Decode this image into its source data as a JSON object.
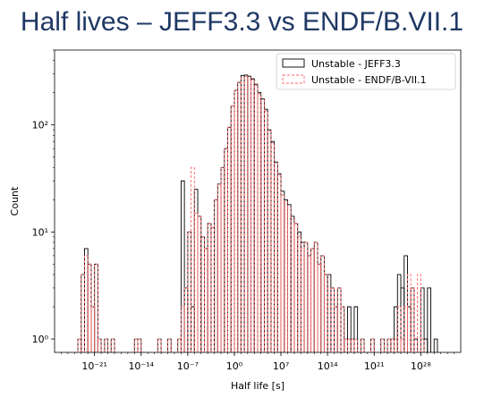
{
  "title": "Half lives – JEFF3.3 vs ENDF/B.VII.1",
  "chart_data": {
    "type": "bar",
    "histogram": true,
    "xscale": "log",
    "yscale": "log",
    "xlabel": "Half life [s]",
    "ylabel": "Count",
    "xlim_exp10": [
      -27,
      34
    ],
    "ylim": [
      0.75,
      500
    ],
    "xticks": [
      {
        "exp": -21,
        "label": "10⁻²¹"
      },
      {
        "exp": -14,
        "label": "10⁻¹⁴"
      },
      {
        "exp": -7,
        "label": "10⁻⁷"
      },
      {
        "exp": 0,
        "label": "10⁰"
      },
      {
        "exp": 7,
        "label": "10⁷"
      },
      {
        "exp": 14,
        "label": "10¹⁴"
      },
      {
        "exp": 21,
        "label": "10²¹"
      },
      {
        "exp": 28,
        "label": "10²⁸"
      }
    ],
    "yticks": [
      {
        "value": 1,
        "label": "10⁰"
      },
      {
        "value": 10,
        "label": "10¹"
      },
      {
        "value": 100,
        "label": "10²"
      }
    ],
    "legend": "top-right",
    "series": [
      {
        "name": "Unstable - JEFF3.3",
        "color": "#000000",
        "style": "solid",
        "bins": [
          [
            -23.5,
            -23.0,
            1
          ],
          [
            -23.0,
            -22.5,
            4
          ],
          [
            -22.5,
            -22.0,
            7
          ],
          [
            -22.0,
            -21.5,
            5
          ],
          [
            -21.5,
            -21.0,
            2
          ],
          [
            -21.0,
            -20.5,
            5
          ],
          [
            -20.5,
            -20.0,
            1
          ],
          [
            -19.5,
            -19.0,
            1
          ],
          [
            -18.5,
            -18.0,
            1
          ],
          [
            -15.0,
            -14.5,
            1
          ],
          [
            -14.5,
            -14.0,
            1
          ],
          [
            -11.5,
            -11.0,
            1
          ],
          [
            -10.0,
            -9.5,
            1
          ],
          [
            -8.5,
            -8.0,
            1
          ],
          [
            -8.0,
            -7.5,
            30
          ],
          [
            -7.5,
            -7.0,
            3
          ],
          [
            -7.0,
            -6.5,
            10
          ],
          [
            -6.5,
            -6.0,
            2
          ],
          [
            -6.0,
            -5.5,
            25
          ],
          [
            -5.5,
            -5.0,
            14
          ],
          [
            -5.0,
            -4.5,
            9
          ],
          [
            -4.5,
            -4.0,
            7
          ],
          [
            -4.0,
            -3.5,
            12
          ],
          [
            -3.5,
            -3.0,
            11
          ],
          [
            -3.0,
            -2.5,
            20
          ],
          [
            -2.5,
            -2.0,
            28
          ],
          [
            -2.0,
            -1.5,
            40
          ],
          [
            -1.5,
            -1.0,
            60
          ],
          [
            -1.0,
            -0.5,
            95
          ],
          [
            -0.5,
            0.0,
            150
          ],
          [
            0.0,
            0.5,
            210
          ],
          [
            0.5,
            1.0,
            250
          ],
          [
            1.0,
            1.5,
            290
          ],
          [
            1.5,
            2.0,
            292
          ],
          [
            2.0,
            2.5,
            285
          ],
          [
            2.5,
            3.0,
            270
          ],
          [
            3.0,
            3.5,
            240
          ],
          [
            3.5,
            4.0,
            200
          ],
          [
            4.0,
            4.5,
            175
          ],
          [
            4.5,
            5.0,
            140
          ],
          [
            5.0,
            5.5,
            90
          ],
          [
            5.5,
            6.0,
            70
          ],
          [
            6.0,
            6.5,
            45
          ],
          [
            6.5,
            7.0,
            35
          ],
          [
            7.0,
            7.5,
            24
          ],
          [
            7.5,
            8.0,
            20
          ],
          [
            8.0,
            8.5,
            18
          ],
          [
            8.5,
            9.0,
            14
          ],
          [
            9.0,
            9.5,
            12
          ],
          [
            9.5,
            10.0,
            10
          ],
          [
            10.0,
            10.5,
            8
          ],
          [
            10.5,
            11.0,
            8
          ],
          [
            11.0,
            11.5,
            6
          ],
          [
            11.5,
            12.0,
            7
          ],
          [
            12.0,
            12.5,
            8
          ],
          [
            12.5,
            13.0,
            5
          ],
          [
            13.0,
            13.5,
            6
          ],
          [
            13.5,
            14.0,
            4
          ],
          [
            14.0,
            14.5,
            4
          ],
          [
            14.5,
            15.0,
            3
          ],
          [
            15.0,
            15.5,
            2
          ],
          [
            15.5,
            16.0,
            3
          ],
          [
            16.0,
            16.5,
            2
          ],
          [
            16.5,
            17.0,
            1
          ],
          [
            17.0,
            17.5,
            2
          ],
          [
            17.5,
            18.0,
            1
          ],
          [
            18.0,
            18.5,
            2
          ],
          [
            19.0,
            19.5,
            1
          ],
          [
            20.5,
            21.0,
            1
          ],
          [
            22.0,
            22.5,
            1
          ],
          [
            23.0,
            23.5,
            1
          ],
          [
            23.5,
            24.0,
            1
          ],
          [
            24.0,
            24.5,
            2
          ],
          [
            24.5,
            25.0,
            4
          ],
          [
            25.0,
            25.5,
            3
          ],
          [
            25.5,
            26.0,
            6
          ],
          [
            26.0,
            26.5,
            2
          ],
          [
            26.5,
            27.0,
            3
          ],
          [
            27.0,
            27.5,
            1
          ],
          [
            28.0,
            28.5,
            3
          ],
          [
            28.5,
            29.0,
            1
          ],
          [
            29.0,
            29.5,
            3
          ],
          [
            30.0,
            30.5,
            1
          ]
        ]
      },
      {
        "name": "Unstable - ENDF/B-VII.1",
        "color": "#ff6666",
        "style": "dashed",
        "bins": [
          [
            -23.5,
            -23.0,
            1
          ],
          [
            -23.0,
            -22.5,
            4
          ],
          [
            -22.5,
            -22.0,
            6
          ],
          [
            -22.0,
            -21.5,
            5
          ],
          [
            -21.5,
            -21.0,
            2
          ],
          [
            -21.0,
            -20.5,
            5
          ],
          [
            -20.5,
            -20.0,
            1
          ],
          [
            -19.5,
            -19.0,
            1
          ],
          [
            -18.5,
            -18.0,
            1
          ],
          [
            -15.0,
            -14.5,
            1
          ],
          [
            -14.5,
            -14.0,
            1
          ],
          [
            -11.5,
            -11.0,
            1
          ],
          [
            -10.0,
            -9.5,
            1
          ],
          [
            -8.5,
            -8.0,
            1
          ],
          [
            -8.0,
            -7.5,
            2
          ],
          [
            -7.5,
            -7.0,
            3
          ],
          [
            -7.0,
            -6.5,
            10
          ],
          [
            -6.5,
            -6.0,
            40
          ],
          [
            -6.0,
            -5.5,
            15
          ],
          [
            -5.5,
            -5.0,
            14
          ],
          [
            -5.0,
            -4.5,
            9
          ],
          [
            -4.5,
            -4.0,
            7
          ],
          [
            -4.0,
            -3.5,
            12
          ],
          [
            -3.5,
            -3.0,
            11
          ],
          [
            -3.0,
            -2.5,
            20
          ],
          [
            -2.5,
            -2.0,
            28
          ],
          [
            -2.0,
            -1.5,
            40
          ],
          [
            -1.5,
            -1.0,
            60
          ],
          [
            -1.0,
            -0.5,
            95
          ],
          [
            -0.5,
            0.0,
            150
          ],
          [
            0.0,
            0.5,
            210
          ],
          [
            0.5,
            1.0,
            250
          ],
          [
            1.0,
            1.5,
            275
          ],
          [
            1.5,
            2.0,
            285
          ],
          [
            2.0,
            2.5,
            280
          ],
          [
            2.5,
            3.0,
            265
          ],
          [
            3.0,
            3.5,
            235
          ],
          [
            3.5,
            4.0,
            195
          ],
          [
            4.0,
            4.5,
            170
          ],
          [
            4.5,
            5.0,
            135
          ],
          [
            5.0,
            5.5,
            88
          ],
          [
            5.5,
            6.0,
            68
          ],
          [
            6.0,
            6.5,
            44
          ],
          [
            6.5,
            7.0,
            34
          ],
          [
            7.0,
            7.5,
            22
          ],
          [
            7.5,
            8.0,
            19
          ],
          [
            8.0,
            8.5,
            17
          ],
          [
            8.5,
            9.0,
            13
          ],
          [
            9.0,
            9.5,
            12
          ],
          [
            9.5,
            10.0,
            9
          ],
          [
            10.0,
            10.5,
            7
          ],
          [
            10.5,
            11.0,
            8
          ],
          [
            11.0,
            11.5,
            6
          ],
          [
            11.5,
            12.0,
            7
          ],
          [
            12.0,
            12.5,
            8
          ],
          [
            12.5,
            13.0,
            5
          ],
          [
            13.0,
            13.5,
            6
          ],
          [
            13.5,
            14.0,
            4
          ],
          [
            14.0,
            14.5,
            3
          ],
          [
            14.5,
            15.0,
            3
          ],
          [
            15.0,
            15.5,
            2
          ],
          [
            15.5,
            16.0,
            3
          ],
          [
            16.0,
            16.5,
            2
          ],
          [
            16.5,
            17.0,
            1
          ],
          [
            17.0,
            17.5,
            1
          ],
          [
            17.5,
            18.0,
            1
          ],
          [
            18.0,
            18.5,
            1
          ],
          [
            19.0,
            19.5,
            1
          ],
          [
            20.5,
            21.0,
            1
          ],
          [
            22.0,
            22.5,
            1
          ],
          [
            23.0,
            23.5,
            1
          ],
          [
            23.5,
            24.0,
            1
          ],
          [
            24.0,
            24.5,
            1
          ],
          [
            24.5,
            25.0,
            2
          ],
          [
            25.0,
            25.5,
            1
          ],
          [
            25.5,
            26.0,
            2
          ],
          [
            26.0,
            26.5,
            4
          ],
          [
            26.5,
            27.0,
            3
          ],
          [
            27.0,
            27.5,
            3
          ],
          [
            27.5,
            28.0,
            4
          ],
          [
            28.0,
            28.5,
            1
          ]
        ]
      }
    ]
  }
}
